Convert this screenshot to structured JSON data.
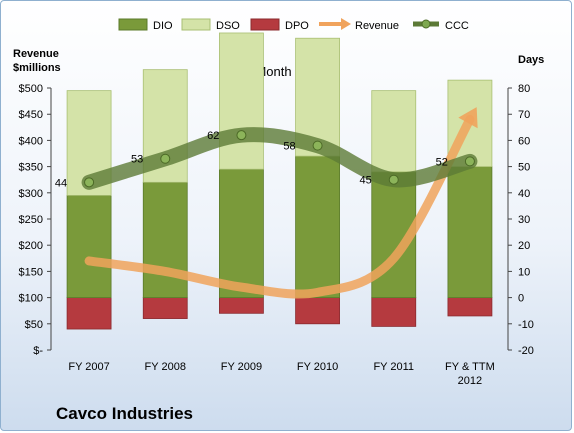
{
  "chart_data": {
    "type": "bar",
    "title": "12-Month Periods",
    "company": "Cavco Industries",
    "left_axis": {
      "title_line1": "Revenue",
      "title_line2": "$millions",
      "range": [
        0,
        500
      ],
      "ticks": [
        "$-",
        "$50",
        "$100",
        "$150",
        "$200",
        "$250",
        "$300",
        "$350",
        "$400",
        "$450",
        "$500"
      ]
    },
    "right_axis": {
      "title": "Days",
      "range": [
        -20,
        80
      ],
      "ticks": [
        "-20",
        "-10",
        "0",
        "10",
        "20",
        "30",
        "40",
        "50",
        "60",
        "70",
        "80"
      ]
    },
    "categories": [
      [
        "FY 2007"
      ],
      [
        "FY 2008"
      ],
      [
        "FY 2009"
      ],
      [
        "FY 2010"
      ],
      [
        "FY 2011"
      ],
      [
        "FY & TTM",
        "2012"
      ]
    ],
    "series": [
      {
        "name": "DIO",
        "color": "#7a9a3a",
        "values": [
          39,
          44,
          49,
          54,
          48,
          50
        ]
      },
      {
        "name": "DSO",
        "color": "#d4e3a8",
        "values": [
          40,
          43,
          52,
          45,
          31,
          33
        ]
      },
      {
        "name": "DPO",
        "color": "#b53a3f",
        "values": [
          -12,
          -8,
          -6,
          -10,
          -11,
          -7
        ]
      },
      {
        "name": "Revenue",
        "color": "#f0a35c",
        "values": [
          170,
          150,
          120,
          110,
          175,
          440
        ]
      },
      {
        "name": "CCC",
        "color": "#5c7a36",
        "values": [
          44,
          53,
          62,
          58,
          45,
          52
        ]
      }
    ],
    "ccc_labels": [
      "44",
      "53",
      "62",
      "58",
      "45",
      "52"
    ],
    "grid": false,
    "legend_position": "top"
  }
}
